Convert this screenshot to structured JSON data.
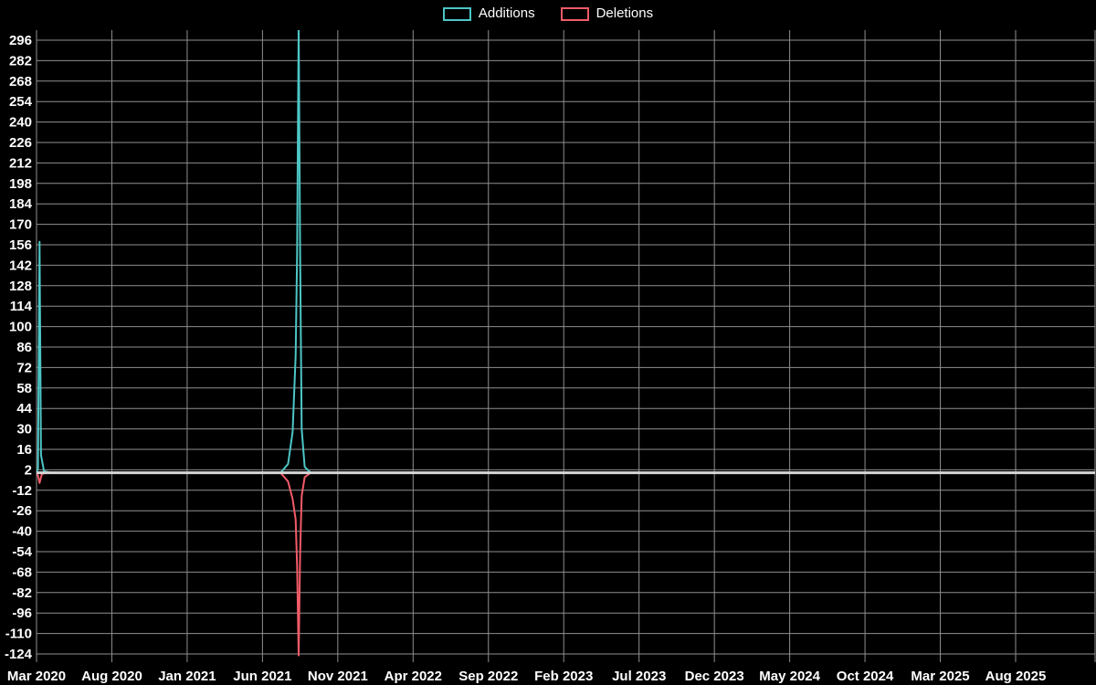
{
  "page": {
    "background": "#000000",
    "text_color": "#ffffff"
  },
  "chart_data": {
    "type": "line",
    "title": "",
    "legend_position": "top-center",
    "grid": true,
    "grid_color": "#8f8f8f",
    "zero_line_color": "#d6d6d6",
    "text_color": "#ffffff",
    "x_axis": {
      "unit": "months since Mar 2020",
      "tick_labels": [
        "Mar 2020",
        "Aug 2020",
        "Jan 2021",
        "Jun 2021",
        "Nov 2021",
        "Apr 2022",
        "Sep 2022",
        "Feb 2023",
        "Jul 2023",
        "Dec 2023",
        "May 2024",
        "Oct 2024",
        "Mar 2025",
        "Aug 2025"
      ],
      "tick_positions": [
        0,
        5,
        10,
        15,
        20,
        25,
        30,
        35,
        40,
        45,
        50,
        55,
        60,
        65
      ],
      "xlim": [
        0,
        70.3
      ]
    },
    "y_axis": {
      "ticks": [
        296,
        282,
        268,
        254,
        240,
        226,
        212,
        198,
        184,
        170,
        156,
        142,
        128,
        114,
        100,
        86,
        72,
        58,
        44,
        30,
        16,
        2,
        -12,
        -26,
        -40,
        -54,
        -68,
        -82,
        -96,
        -110,
        -124
      ],
      "ylim": [
        -130,
        303
      ]
    },
    "series": [
      {
        "name": "Additions",
        "color": "#4dc6c6",
        "points": [
          [
            0,
            0
          ],
          [
            0.1,
            3
          ],
          [
            0.2,
            158
          ],
          [
            0.3,
            12
          ],
          [
            0.5,
            1
          ],
          [
            1,
            0
          ],
          [
            16.2,
            0
          ],
          [
            16.7,
            6
          ],
          [
            17.0,
            28
          ],
          [
            17.2,
            80
          ],
          [
            17.3,
            150
          ],
          [
            17.4,
            308
          ],
          [
            17.5,
            150
          ],
          [
            17.6,
            30
          ],
          [
            17.8,
            4
          ],
          [
            18.2,
            0
          ],
          [
            70.3,
            0
          ]
        ]
      },
      {
        "name": "Deletions",
        "color": "#f25b68",
        "points": [
          [
            0,
            0
          ],
          [
            0.1,
            -2
          ],
          [
            0.2,
            -7
          ],
          [
            0.35,
            -1
          ],
          [
            0.6,
            0
          ],
          [
            16.2,
            0
          ],
          [
            16.7,
            -6
          ],
          [
            17.0,
            -18
          ],
          [
            17.2,
            -32
          ],
          [
            17.3,
            -64
          ],
          [
            17.4,
            -125
          ],
          [
            17.5,
            -55
          ],
          [
            17.6,
            -16
          ],
          [
            17.8,
            -3
          ],
          [
            18.2,
            0
          ],
          [
            70.3,
            0
          ]
        ]
      }
    ]
  }
}
